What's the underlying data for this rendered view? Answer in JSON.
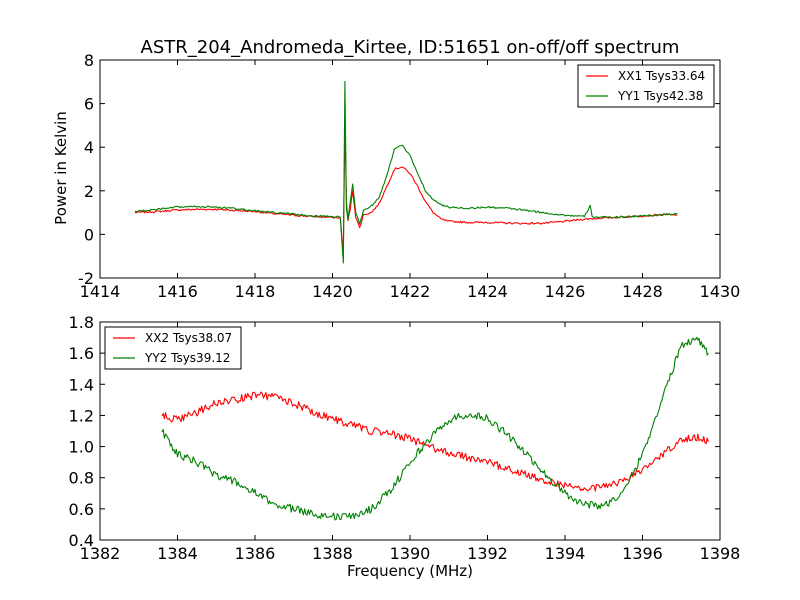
{
  "chart_data": [
    {
      "type": "line",
      "title": "ASTR_204_Andromeda_Kirtee, ID:51651 on-off/off spectrum",
      "xlabel": "",
      "ylabel": "Power in Kelvin",
      "xlim": [
        1414,
        1430
      ],
      "ylim": [
        -2,
        8
      ],
      "xticks": [
        1414,
        1416,
        1418,
        1420,
        1422,
        1424,
        1426,
        1428,
        1430
      ],
      "yticks": [
        -2,
        0,
        2,
        4,
        6,
        8
      ],
      "legend_position": "top-right",
      "grid": false,
      "series": [
        {
          "name": "XX1 Tsys33.64",
          "color": "#ff0000",
          "x": [
            1414.9,
            1415.5,
            1416.0,
            1416.5,
            1417.0,
            1417.5,
            1418.0,
            1418.5,
            1419.0,
            1419.5,
            1420.0,
            1420.2,
            1420.28,
            1420.32,
            1420.36,
            1420.4,
            1420.46,
            1420.52,
            1420.6,
            1420.7,
            1420.8,
            1421.0,
            1421.2,
            1421.4,
            1421.6,
            1421.8,
            1422.0,
            1422.2,
            1422.4,
            1422.6,
            1422.8,
            1423.0,
            1423.5,
            1424.0,
            1424.5,
            1425.0,
            1425.5,
            1426.0,
            1426.5,
            1427.0,
            1427.5,
            1428.0,
            1428.5,
            1428.9
          ],
          "values": [
            1.0,
            1.05,
            1.12,
            1.15,
            1.15,
            1.1,
            1.05,
            0.95,
            0.88,
            0.82,
            0.78,
            0.75,
            -0.8,
            5.2,
            1.5,
            0.6,
            1.2,
            2.0,
            0.8,
            0.3,
            0.9,
            1.0,
            1.4,
            2.2,
            3.0,
            3.1,
            2.8,
            2.2,
            1.5,
            1.0,
            0.7,
            0.6,
            0.55,
            0.55,
            0.52,
            0.5,
            0.52,
            0.6,
            0.7,
            0.75,
            0.8,
            0.85,
            0.9,
            0.9
          ]
        },
        {
          "name": "YY1 Tsys42.38",
          "color": "#008000",
          "x": [
            1414.9,
            1415.5,
            1416.0,
            1416.5,
            1417.0,
            1417.5,
            1418.0,
            1418.5,
            1419.0,
            1419.5,
            1420.0,
            1420.2,
            1420.28,
            1420.32,
            1420.36,
            1420.4,
            1420.46,
            1420.52,
            1420.6,
            1420.7,
            1420.8,
            1421.0,
            1421.2,
            1421.4,
            1421.6,
            1421.8,
            1422.0,
            1422.2,
            1422.4,
            1422.6,
            1422.8,
            1423.0,
            1423.5,
            1424.0,
            1424.5,
            1425.0,
            1425.5,
            1426.0,
            1426.5,
            1426.65,
            1426.7,
            1426.75,
            1427.0,
            1427.5,
            1428.0,
            1428.5,
            1428.9
          ],
          "values": [
            1.05,
            1.15,
            1.25,
            1.28,
            1.25,
            1.18,
            1.08,
            1.0,
            0.92,
            0.85,
            0.82,
            0.8,
            -1.3,
            7.0,
            1.2,
            0.7,
            1.5,
            2.3,
            1.0,
            0.5,
            1.1,
            1.3,
            1.7,
            2.7,
            3.9,
            4.1,
            3.6,
            2.8,
            2.0,
            1.6,
            1.35,
            1.25,
            1.2,
            1.25,
            1.2,
            1.1,
            0.98,
            0.88,
            0.82,
            1.3,
            0.85,
            0.8,
            0.78,
            0.8,
            0.85,
            0.9,
            0.95
          ]
        }
      ]
    },
    {
      "type": "line",
      "title": "",
      "xlabel": "Frequency (MHz)",
      "ylabel": "",
      "xlim": [
        1382,
        1398
      ],
      "ylim": [
        0.4,
        1.8
      ],
      "xticks": [
        1382,
        1384,
        1386,
        1388,
        1390,
        1392,
        1394,
        1396,
        1398
      ],
      "yticks": [
        0.4,
        0.6,
        0.8,
        1.0,
        1.2,
        1.4,
        1.6,
        1.8
      ],
      "legend_position": "top-left",
      "grid": false,
      "series": [
        {
          "name": "XX2 Tsys38.07",
          "color": "#ff0000",
          "x": [
            1383.6,
            1384.0,
            1384.5,
            1385.0,
            1385.5,
            1386.0,
            1386.5,
            1387.0,
            1387.5,
            1388.0,
            1388.5,
            1389.0,
            1389.5,
            1390.0,
            1390.5,
            1391.0,
            1391.5,
            1392.0,
            1392.5,
            1393.0,
            1393.5,
            1394.0,
            1394.5,
            1395.0,
            1395.5,
            1396.0,
            1396.5,
            1397.0,
            1397.4,
            1397.7
          ],
          "values": [
            1.2,
            1.17,
            1.22,
            1.28,
            1.3,
            1.33,
            1.32,
            1.28,
            1.22,
            1.18,
            1.14,
            1.1,
            1.08,
            1.05,
            1.0,
            0.96,
            0.93,
            0.9,
            0.86,
            0.82,
            0.78,
            0.75,
            0.73,
            0.74,
            0.78,
            0.85,
            0.95,
            1.05,
            1.06,
            1.03
          ]
        },
        {
          "name": "YY2 Tsys39.12",
          "color": "#008000",
          "x": [
            1383.6,
            1384.0,
            1384.5,
            1385.0,
            1385.5,
            1386.0,
            1386.5,
            1387.0,
            1387.5,
            1388.0,
            1388.5,
            1389.0,
            1389.5,
            1390.0,
            1390.5,
            1391.0,
            1391.5,
            1392.0,
            1392.5,
            1393.0,
            1393.5,
            1394.0,
            1394.5,
            1395.0,
            1395.5,
            1396.0,
            1396.5,
            1397.0,
            1397.4,
            1397.7
          ],
          "values": [
            1.1,
            0.95,
            0.9,
            0.82,
            0.77,
            0.7,
            0.63,
            0.6,
            0.57,
            0.55,
            0.55,
            0.6,
            0.72,
            0.9,
            1.05,
            1.17,
            1.21,
            1.18,
            1.08,
            0.95,
            0.82,
            0.7,
            0.63,
            0.62,
            0.7,
            0.95,
            1.3,
            1.65,
            1.7,
            1.6
          ]
        }
      ]
    }
  ]
}
